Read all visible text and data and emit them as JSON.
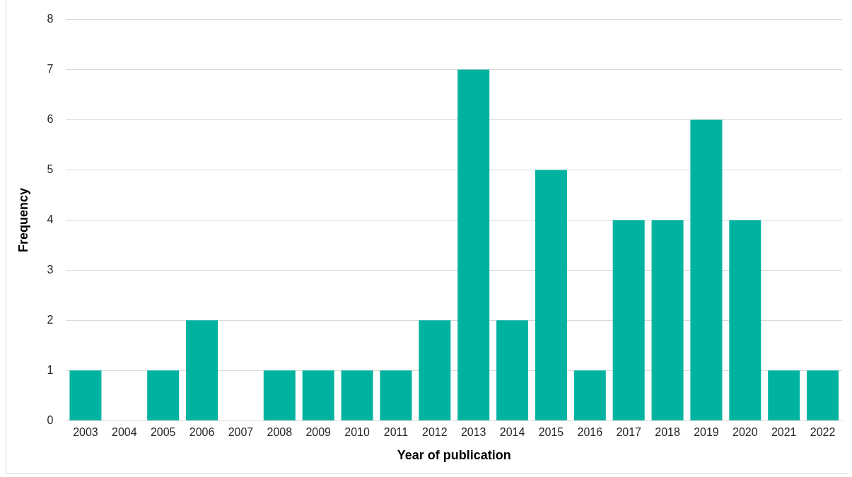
{
  "chart_data": {
    "type": "bar",
    "xlabel": "Year of publication",
    "ylabel": "Frequency",
    "categories": [
      "2003",
      "2004",
      "2005",
      "2006",
      "2007",
      "2008",
      "2009",
      "2010",
      "2011",
      "2012",
      "2013",
      "2014",
      "2015",
      "2016",
      "2017",
      "2018",
      "2019",
      "2020",
      "2021",
      "2022"
    ],
    "values": [
      1,
      0,
      1,
      2,
      0,
      1,
      1,
      1,
      1,
      2,
      7,
      2,
      5,
      1,
      4,
      4,
      6,
      4,
      1,
      1
    ],
    "color": "#00b3a0",
    "ylim": [
      0,
      8
    ],
    "yticks": [
      0,
      1,
      2,
      3,
      4,
      5,
      6,
      7,
      8
    ],
    "grid": "y",
    "legend": false
  }
}
